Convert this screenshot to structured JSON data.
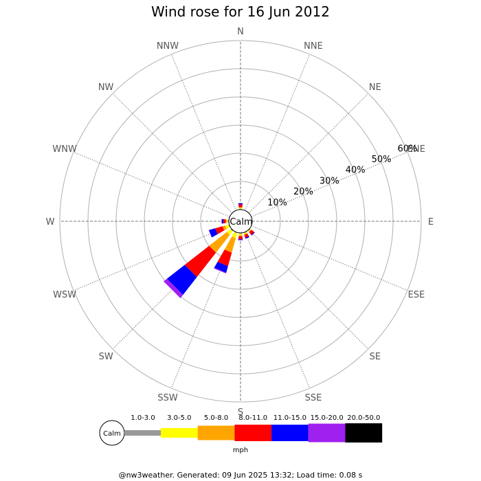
{
  "chart_data": {
    "type": "wind-rose",
    "title": "Wind rose for 16 Jun 2012",
    "calm_label": "Calm",
    "unit_label": "mph",
    "directions": [
      "N",
      "NNE",
      "NE",
      "ENE",
      "E",
      "ESE",
      "SE",
      "SSE",
      "S",
      "SSW",
      "SW",
      "WSW",
      "W",
      "WNW",
      "NW",
      "NNW"
    ],
    "radial_ticks": [
      "10%",
      "20%",
      "30%",
      "40%",
      "50%",
      "60%"
    ],
    "radial_max": 60,
    "speed_bins": [
      {
        "label": "1.0-3.0",
        "color": "#999999"
      },
      {
        "label": "3.0-5.0",
        "color": "#ffff00"
      },
      {
        "label": "5.0-8.0",
        "color": "#ffa500"
      },
      {
        "label": "8.0-11.0",
        "color": "#ff0000"
      },
      {
        "label": "11.0-15.0",
        "color": "#0000ff"
      },
      {
        "label": "15.0-20.0",
        "color": "#a020f0"
      },
      {
        "label": "20.0-50.0",
        "color": "#000000"
      }
    ],
    "series": [
      {
        "direction": "N",
        "cumulative": [
          0.3,
          0.6,
          0.9,
          1.9,
          2.3,
          2.3,
          2.3
        ]
      },
      {
        "direction": "NNE",
        "cumulative": [
          0,
          0,
          0,
          0,
          0,
          0,
          0
        ]
      },
      {
        "direction": "NE",
        "cumulative": [
          0,
          0,
          0,
          0,
          0,
          0,
          0
        ]
      },
      {
        "direction": "ENE",
        "cumulative": [
          0,
          0,
          0,
          0,
          0,
          0,
          0
        ]
      },
      {
        "direction": "E",
        "cumulative": [
          0,
          0,
          0,
          0,
          0,
          0,
          0
        ]
      },
      {
        "direction": "ESE",
        "cumulative": [
          0,
          0,
          0,
          0,
          0,
          0,
          0
        ]
      },
      {
        "direction": "SE",
        "cumulative": [
          0.3,
          0.6,
          0.8,
          2.0,
          2.3,
          2.3,
          2.3
        ]
      },
      {
        "direction": "SSE",
        "cumulative": [
          0.3,
          0.6,
          0.9,
          1.9,
          2.3,
          2.3,
          2.3
        ]
      },
      {
        "direction": "S",
        "cumulative": [
          0.3,
          0.8,
          1.2,
          2.3,
          2.6,
          2.6,
          2.6
        ]
      },
      {
        "direction": "SSW",
        "cumulative": [
          0.3,
          2.1,
          7.4,
          12.4,
          14.8,
          15.1,
          15.1
        ]
      },
      {
        "direction": "SW",
        "cumulative": [
          0.4,
          2.0,
          10.0,
          21.0,
          29.0,
          30.5,
          30.5
        ]
      },
      {
        "direction": "WSW",
        "cumulative": [
          0.3,
          1.5,
          2.5,
          5.2,
          7.5,
          7.6,
          7.6
        ]
      },
      {
        "direction": "W",
        "cumulative": [
          0.4,
          0.8,
          1.1,
          2.0,
          2.6,
          2.6,
          2.6
        ]
      },
      {
        "direction": "WNW",
        "cumulative": [
          0,
          0,
          0,
          0,
          0,
          0,
          0
        ]
      },
      {
        "direction": "NW",
        "cumulative": [
          0,
          0,
          0,
          0,
          0,
          0,
          0
        ]
      },
      {
        "direction": "NNW",
        "cumulative": [
          0,
          0,
          0,
          0,
          0,
          0,
          0
        ]
      }
    ]
  },
  "footer": "@nw3weather. Generated: 09 Jun 2025 13:32; Load time: 0.08 s"
}
